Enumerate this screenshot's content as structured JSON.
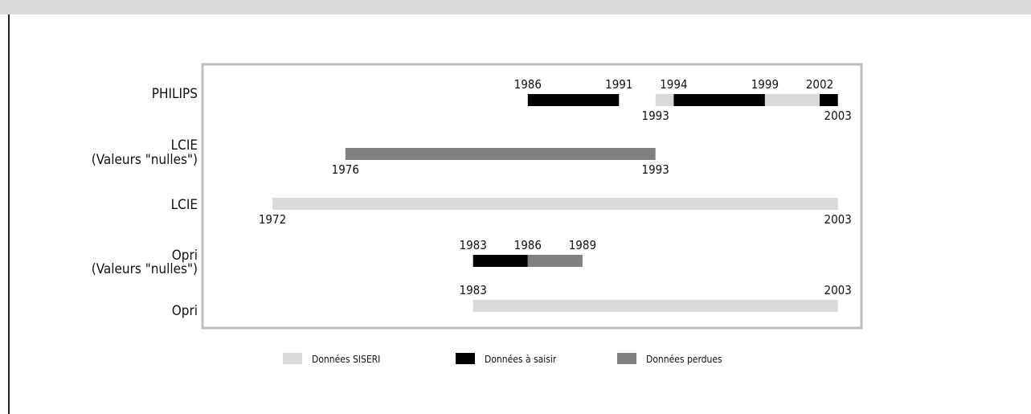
{
  "chart_data": {
    "type": "timeline",
    "x_unit": "year",
    "xlim": [
      1962,
      2003
    ],
    "rows": [
      {
        "label": "PHILIPS",
        "segments": [
          {
            "start": 1986,
            "end": 1991,
            "category": "saisir"
          },
          {
            "start": 1993,
            "end": 1994,
            "category": "siseri"
          },
          {
            "start": 1994,
            "end": 1999,
            "category": "saisir"
          },
          {
            "start": 1999,
            "end": 2002,
            "category": "siseri"
          },
          {
            "start": 2002,
            "end": 2003,
            "category": "saisir"
          }
        ],
        "labels_above": [
          "1986",
          "1991",
          "1994",
          "1999",
          "2002"
        ],
        "labels_below": [
          "1993",
          "2003"
        ]
      },
      {
        "label": "LCIE\n(Valeurs \"nulles\")",
        "segments": [
          {
            "start": 1976,
            "end": 1993,
            "category": "perdues"
          }
        ],
        "labels_above": [],
        "labels_below": [
          "1976",
          "1993"
        ]
      },
      {
        "label": "LCIE",
        "segments": [
          {
            "start": 1972,
            "end": 2003,
            "category": "siseri"
          }
        ],
        "labels_above": [],
        "labels_below": [
          "1972",
          "2003"
        ]
      },
      {
        "label": "Opri\n(Valeurs \"nulles\")",
        "segments": [
          {
            "start": 1983,
            "end": 1986,
            "category": "saisir"
          },
          {
            "start": 1986,
            "end": 1989,
            "category": "perdues"
          }
        ],
        "labels_above": [
          "1983",
          "1986",
          "1989"
        ],
        "labels_below": []
      },
      {
        "label": "Opri",
        "segments": [
          {
            "start": 1983,
            "end": 2003,
            "category": "siseri"
          }
        ],
        "labels_above": [
          "1983",
          "2003"
        ],
        "labels_below": []
      }
    ],
    "legend": [
      {
        "key": "siseri",
        "label": "Données SISERI",
        "color": "#d9d9d9"
      },
      {
        "key": "saisir",
        "label": "Données à saisir",
        "color": "#000000"
      },
      {
        "key": "perdues",
        "label": "Données perdues",
        "color": "#808080"
      }
    ],
    "legend_position": "bottom"
  }
}
